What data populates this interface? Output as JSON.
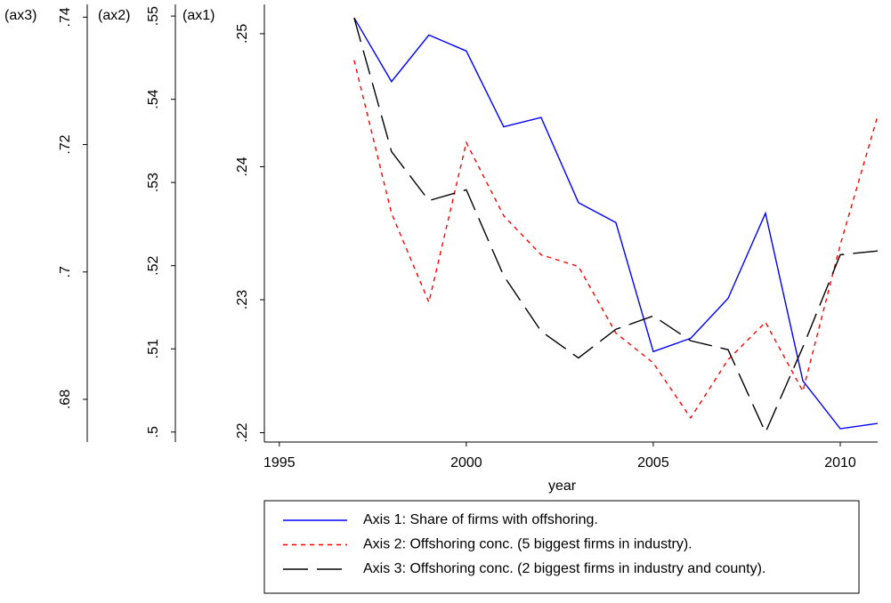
{
  "chart_data": {
    "type": "line",
    "xlabel": "year",
    "x": [
      1997,
      1998,
      1999,
      2000,
      2001,
      2002,
      2003,
      2004,
      2005,
      2006,
      2007,
      2008,
      2009,
      2010,
      2011
    ],
    "xlim": [
      1994.6,
      2011
    ],
    "xticks": [
      1995,
      2000,
      2005,
      2010
    ],
    "ylabel": "(ax1)",
    "ylim": [
      0.2193,
      0.2522
    ],
    "yticks": [
      {
        "value": 0.22,
        "label": ".22"
      },
      {
        "value": 0.23,
        "label": ".23"
      },
      {
        "value": 0.24,
        "label": ".24"
      },
      {
        "value": 0.25,
        "label": ".25"
      }
    ],
    "y2label": "(ax2)",
    "y2lim": [
      0.4988,
      0.5514
    ],
    "y2ticks": [
      {
        "value": 0.5,
        "label": ".5"
      },
      {
        "value": 0.51,
        "label": ".51"
      },
      {
        "value": 0.52,
        "label": ".52"
      },
      {
        "value": 0.53,
        "label": ".53"
      },
      {
        "value": 0.54,
        "label": ".54"
      },
      {
        "value": 0.55,
        "label": ".55"
      }
    ],
    "y3label": "(ax3)",
    "y3lim": [
      0.6733,
      0.742
    ],
    "y3ticks": [
      {
        "value": 0.68,
        "label": ".68"
      },
      {
        "value": 0.7,
        "label": ".7"
      },
      {
        "value": 0.72,
        "label": ".72"
      },
      {
        "value": 0.74,
        "label": ".74"
      }
    ],
    "series": [
      {
        "name": "Axis 1: Share of firms with offshoring.",
        "color": "#0000ff",
        "dash": "solid",
        "axis": "y",
        "values": [
          0.2512,
          0.2464,
          0.2499,
          0.2487,
          0.243,
          0.2437,
          0.2373,
          0.2358,
          0.2261,
          0.2271,
          0.2301,
          0.2365,
          0.2239,
          0.2203,
          0.2207
        ]
      },
      {
        "name": "Axis 2: Offshoring conc. (5 biggest firms in industry).",
        "color": "#ff0000",
        "dash": "short",
        "axis": "y2",
        "values": [
          0.5447,
          0.5263,
          0.5156,
          0.5348,
          0.526,
          0.5213,
          0.5199,
          0.5119,
          0.5083,
          0.5017,
          0.5087,
          0.5132,
          0.5049,
          0.5225,
          0.538
        ]
      },
      {
        "name": "Axis 3: Offshoring conc. (2 biggest firms in industry and county).",
        "color": "#000000",
        "dash": "long",
        "axis": "y3",
        "values": [
          0.7399,
          0.7189,
          0.7112,
          0.7129,
          0.6994,
          0.6907,
          0.6865,
          0.691,
          0.6931,
          0.6892,
          0.6878,
          0.6748,
          0.6882,
          0.7027,
          0.7033
        ]
      }
    ]
  }
}
